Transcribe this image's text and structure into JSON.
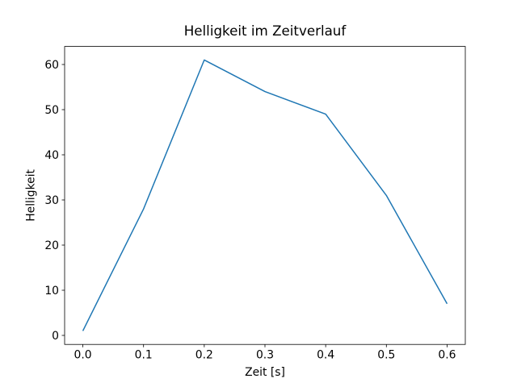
{
  "figure": {
    "background_color": "#ffffff"
  },
  "chart_data": {
    "type": "line",
    "title": "Helligkeit im Zeitverlauf",
    "xlabel": "Zeit [s]",
    "ylabel": "Helligkeit",
    "x": [
      0.0,
      0.1,
      0.2,
      0.3,
      0.4,
      0.5,
      0.6
    ],
    "y": [
      1,
      28,
      61,
      54,
      49,
      31,
      7
    ],
    "xlim": [
      -0.03,
      0.63
    ],
    "ylim": [
      -2,
      64
    ],
    "x_tick_values": [
      0.0,
      0.1,
      0.2,
      0.3,
      0.4,
      0.5,
      0.6
    ],
    "x_tick_labels": [
      "0.0",
      "0.1",
      "0.2",
      "0.3",
      "0.4",
      "0.5",
      "0.6"
    ],
    "y_tick_values": [
      0,
      10,
      20,
      30,
      40,
      50,
      60
    ],
    "y_tick_labels": [
      "0",
      "10",
      "20",
      "30",
      "40",
      "50",
      "60"
    ],
    "line_color": "#1f77b4",
    "line_width": 1.5,
    "spine_color": "#000000",
    "text_color": "#000000",
    "grid": false,
    "legend": "none"
  }
}
